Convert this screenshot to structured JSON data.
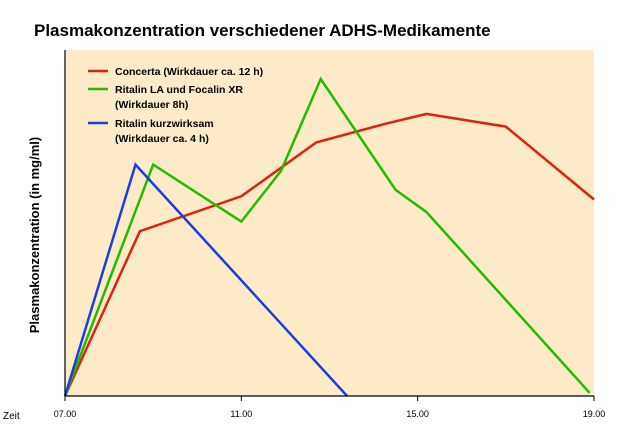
{
  "chart_data": {
    "type": "line",
    "title": "Plasmakonzentration verschiedener ADHS-Medikamente",
    "ylabel": "Plasmakonzentration (in mg/ml)",
    "xlabel": "Zeit",
    "xlim": [
      7,
      19
    ],
    "ylim": [
      0,
      100
    ],
    "xticks": [
      {
        "value": 7,
        "label": "07.00"
      },
      {
        "value": 11,
        "label": "11.00"
      },
      {
        "value": 15,
        "label": "15.00"
      },
      {
        "value": 19,
        "label": "19.00"
      }
    ],
    "series": [
      {
        "name": "Concerta (Wirkdauer ca. 12 h)",
        "legend_lines": [
          "Concerta (Wirkdauer ca. 12 h)"
        ],
        "color": "#e02010",
        "x": [
          7,
          8.7,
          11,
          12.7,
          14.3,
          15.2,
          17,
          19
        ],
        "y": [
          0,
          52,
          63,
          80,
          86,
          89,
          85,
          62
        ]
      },
      {
        "name": "Ritalin LA und Focalin XR (Wirkdauer 8h)",
        "legend_lines": [
          "Ritalin LA und Focalin XR",
          "(Wirkdauer 8h)"
        ],
        "color": "#22bb00",
        "x": [
          7,
          9,
          11,
          11.9,
          12.8,
          14.5,
          15.2,
          18.9
        ],
        "y": [
          0,
          73,
          55,
          71,
          100,
          65,
          58,
          1
        ]
      },
      {
        "name": "Ritalin kurzwirksam (Wirkdauer ca. 4 h)",
        "legend_lines": [
          "Ritalin kurzwirksam",
          "(Wirkdauer ca. 4 h)"
        ],
        "color": "#1a3fe0",
        "x": [
          7,
          8.6,
          13.4
        ],
        "y": [
          0,
          73,
          0
        ]
      }
    ],
    "legend_position": "top-left",
    "background_color": "#fdebc8",
    "grid": false
  }
}
